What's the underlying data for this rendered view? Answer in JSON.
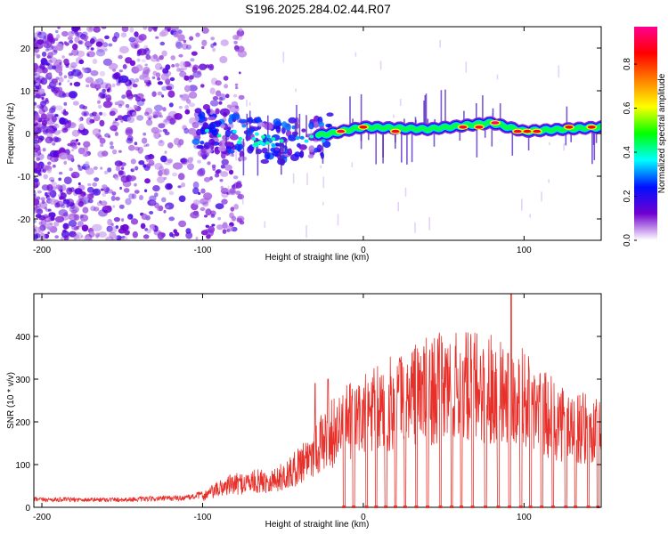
{
  "title": "S196.2025.284.02.44.R07",
  "chart_data": [
    {
      "type": "heatmap",
      "id": "spectrogram",
      "xlabel": "Height of straight line (km)",
      "ylabel": "Frequency (Hz)",
      "xlim": [
        -205,
        148
      ],
      "ylim": [
        -25,
        25
      ],
      "xticks": [
        -200,
        -100,
        0,
        100
      ],
      "yticks": [
        -20,
        -10,
        0,
        10,
        20
      ],
      "colorbar": {
        "label": "Normalized spectral amplitude",
        "range": [
          0.0,
          0.97
        ],
        "ticks": [
          0.0,
          0.2,
          0.4,
          0.6,
          0.8
        ],
        "stops": [
          "#ffffff",
          "#7000d0",
          "#0010ff",
          "#00ffff",
          "#00ff00",
          "#ffff00",
          "#ff8000",
          "#ff0000",
          "#ff0090"
        ]
      },
      "ridge": {
        "description": "central spectral line",
        "points": [
          [
            -100,
            1.5
          ],
          [
            -80,
            -1
          ],
          [
            -50,
            -2
          ],
          [
            -30,
            -0.5
          ],
          [
            -20,
            0
          ],
          [
            0,
            1.5
          ],
          [
            40,
            1
          ],
          [
            80,
            2.5
          ],
          [
            100,
            0.5
          ],
          [
            148,
            1.5
          ]
        ]
      },
      "peaks": [
        {
          "x": -14,
          "f": 0.5,
          "a": 0.92
        },
        {
          "x": 0,
          "f": 1.5,
          "a": 0.85
        },
        {
          "x": 20,
          "f": 0.5,
          "a": 0.9
        },
        {
          "x": 62,
          "f": 1.5,
          "a": 0.9
        },
        {
          "x": 72,
          "f": 1.5,
          "a": 0.9
        },
        {
          "x": 82,
          "f": 2.5,
          "a": 0.95
        },
        {
          "x": 96,
          "f": 0.5,
          "a": 0.9
        },
        {
          "x": 102,
          "f": 0.5,
          "a": 0.85
        },
        {
          "x": 108,
          "f": 0.5,
          "a": 0.88
        },
        {
          "x": 128,
          "f": 1.5,
          "a": 0.85
        },
        {
          "x": 142,
          "f": 1.5,
          "a": 0.85
        }
      ]
    },
    {
      "type": "line",
      "id": "snr",
      "xlabel": "Height of straight line (km)",
      "ylabel": "SNR (10 * v/v)",
      "xlim": [
        -205,
        148
      ],
      "ylim": [
        0,
        500
      ],
      "xticks": [
        -200,
        -100,
        0,
        100
      ],
      "yticks": [
        0,
        100,
        200,
        300,
        400
      ],
      "color": "#e8302a",
      "envelope": [
        [
          -205,
          18
        ],
        [
          -150,
          18
        ],
        [
          -110,
          22
        ],
        [
          -100,
          30
        ],
        [
          -85,
          60
        ],
        [
          -70,
          70
        ],
        [
          -55,
          75
        ],
        [
          -45,
          95
        ],
        [
          -35,
          140
        ],
        [
          -25,
          180
        ],
        [
          -15,
          220
        ],
        [
          -5,
          240
        ],
        [
          10,
          270
        ],
        [
          30,
          310
        ],
        [
          50,
          330
        ],
        [
          70,
          330
        ],
        [
          85,
          330
        ],
        [
          100,
          300
        ],
        [
          110,
          260
        ],
        [
          120,
          240
        ],
        [
          130,
          225
        ],
        [
          148,
          200
        ]
      ],
      "dropouts_x": [
        -12,
        -6,
        2,
        8,
        14,
        20,
        26,
        33,
        40,
        48,
        55,
        61,
        68,
        76,
        84,
        91,
        98,
        104,
        111,
        118,
        126,
        132,
        140,
        146
      ],
      "spikes": [
        {
          "x": 92,
          "y": 500
        },
        {
          "x": 90,
          "y": 360
        },
        {
          "x": -30,
          "y": 290
        },
        {
          "x": -22,
          "y": 300
        }
      ]
    }
  ]
}
